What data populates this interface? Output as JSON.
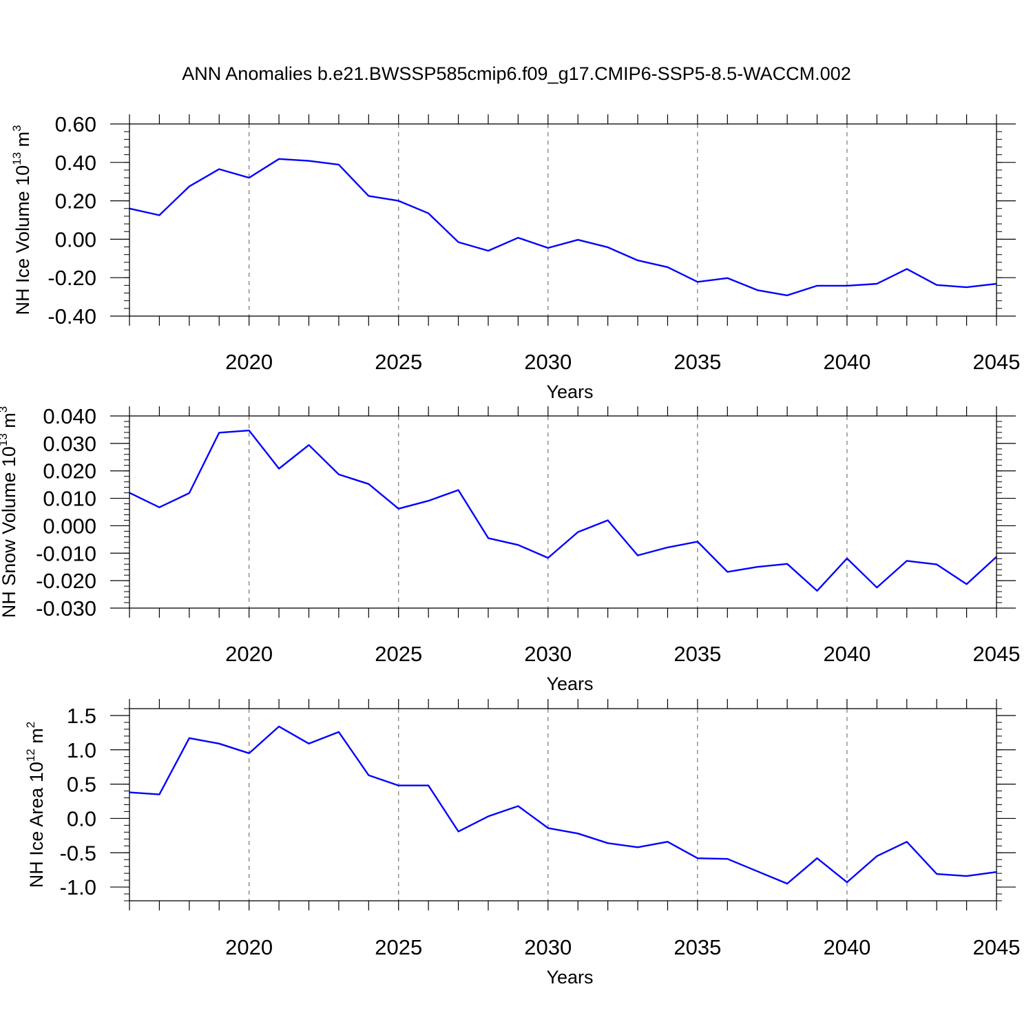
{
  "title": "ANN Anomalies b.e21.BWSSP585cmip6.f09_g17.CMIP6-SSP5-8.5-WACCM.002",
  "colors": {
    "series": "#0000ff",
    "axes": "#000000",
    "grid": "#777777"
  },
  "chart_data": [
    {
      "type": "line",
      "ylabel": {
        "main": "NH Ice Volume 10",
        "sup": "13",
        "unit": " m",
        "unit_sup": "3"
      },
      "xlabel": "Years",
      "xlim": [
        2016,
        2045
      ],
      "ylim": [
        -0.4,
        0.6
      ],
      "y_ticks": [
        -0.4,
        -0.2,
        0.0,
        0.2,
        0.4,
        0.6
      ],
      "y_tick_labels": [
        "-0.40",
        "-0.20",
        "0.00",
        "0.20",
        "0.40",
        "0.60"
      ],
      "y_minor_step": 0.04,
      "x_ticks": [
        2020,
        2025,
        2030,
        2035,
        2040,
        2045
      ],
      "x_tick_labels": [
        "2020",
        "2025",
        "2030",
        "2035",
        "2040",
        "2045"
      ],
      "grid": "vertical dashed at major x ticks",
      "x": [
        2016,
        2017,
        2018,
        2019,
        2020,
        2021,
        2022,
        2023,
        2024,
        2025,
        2026,
        2027,
        2028,
        2029,
        2030,
        2031,
        2032,
        2033,
        2034,
        2035,
        2036,
        2037,
        2038,
        2039,
        2040,
        2041,
        2042,
        2043,
        2044,
        2045
      ],
      "values": [
        0.16,
        0.125,
        0.275,
        0.365,
        0.32,
        0.418,
        0.408,
        0.388,
        0.225,
        0.2,
        0.135,
        -0.015,
        -0.06,
        0.008,
        -0.045,
        -0.003,
        -0.042,
        -0.11,
        -0.145,
        -0.222,
        -0.202,
        -0.265,
        -0.292,
        -0.242,
        -0.242,
        -0.232,
        -0.155,
        -0.238,
        -0.25,
        -0.232
      ]
    },
    {
      "type": "line",
      "ylabel": {
        "main": "NH Snow Volume 10",
        "sup": "13",
        "unit": " m",
        "unit_sup": "3"
      },
      "xlabel": "Years",
      "xlim": [
        2016,
        2045
      ],
      "ylim": [
        -0.03,
        0.04
      ],
      "y_ticks": [
        -0.03,
        -0.02,
        -0.01,
        0.0,
        0.01,
        0.02,
        0.03,
        0.04
      ],
      "y_tick_labels": [
        "-0.030",
        "-0.020",
        "-0.010",
        "0.000",
        "0.010",
        "0.020",
        "0.030",
        "0.040"
      ],
      "y_minor_step": 0.002,
      "x_ticks": [
        2020,
        2025,
        2030,
        2035,
        2040,
        2045
      ],
      "x_tick_labels": [
        "2020",
        "2025",
        "2030",
        "2035",
        "2040",
        "2045"
      ],
      "grid": "vertical dashed at major x ticks",
      "x": [
        2016,
        2017,
        2018,
        2019,
        2020,
        2021,
        2022,
        2023,
        2024,
        2025,
        2026,
        2027,
        2028,
        2029,
        2030,
        2031,
        2032,
        2033,
        2034,
        2035,
        2036,
        2037,
        2038,
        2039,
        2040,
        2041,
        2042,
        2043,
        2044,
        2045
      ],
      "values": [
        0.012,
        0.0067,
        0.0119,
        0.0339,
        0.0347,
        0.0208,
        0.0294,
        0.0187,
        0.0152,
        0.0062,
        0.0091,
        0.013,
        -0.0045,
        -0.007,
        -0.0117,
        -0.0023,
        0.002,
        -0.0108,
        -0.0079,
        -0.0058,
        -0.0168,
        -0.015,
        -0.0139,
        -0.0237,
        -0.0119,
        -0.0225,
        -0.0128,
        -0.0141,
        -0.0213,
        -0.0113
      ]
    },
    {
      "type": "line",
      "ylabel": {
        "main": "NH Ice Area 10",
        "sup": "12",
        "unit": " m",
        "unit_sup": "2"
      },
      "xlabel": "Years",
      "xlim": [
        2016,
        2045
      ],
      "ylim": [
        -1.2,
        1.6
      ],
      "y_ticks": [
        -1.0,
        -0.5,
        0.0,
        0.5,
        1.0,
        1.5
      ],
      "y_tick_labels": [
        "-1.0",
        "-0.5",
        "0.0",
        "0.5",
        "1.0",
        "1.5"
      ],
      "y_minor_step": 0.1,
      "x_ticks": [
        2020,
        2025,
        2030,
        2035,
        2040,
        2045
      ],
      "x_tick_labels": [
        "2020",
        "2025",
        "2030",
        "2035",
        "2040",
        "2045"
      ],
      "grid": "vertical dashed at major x ticks",
      "x": [
        2016,
        2017,
        2018,
        2019,
        2020,
        2021,
        2022,
        2023,
        2024,
        2025,
        2026,
        2027,
        2028,
        2029,
        2030,
        2031,
        2032,
        2033,
        2034,
        2035,
        2036,
        2037,
        2038,
        2039,
        2040,
        2041,
        2042,
        2043,
        2044,
        2045
      ],
      "values": [
        0.38,
        0.35,
        1.17,
        1.09,
        0.95,
        1.34,
        1.09,
        1.26,
        0.63,
        0.48,
        0.48,
        -0.19,
        0.03,
        0.18,
        -0.14,
        -0.22,
        -0.36,
        -0.42,
        -0.34,
        -0.58,
        -0.59,
        -0.77,
        -0.95,
        -0.58,
        -0.93,
        -0.55,
        -0.34,
        -0.81,
        -0.84,
        -0.78
      ]
    }
  ]
}
